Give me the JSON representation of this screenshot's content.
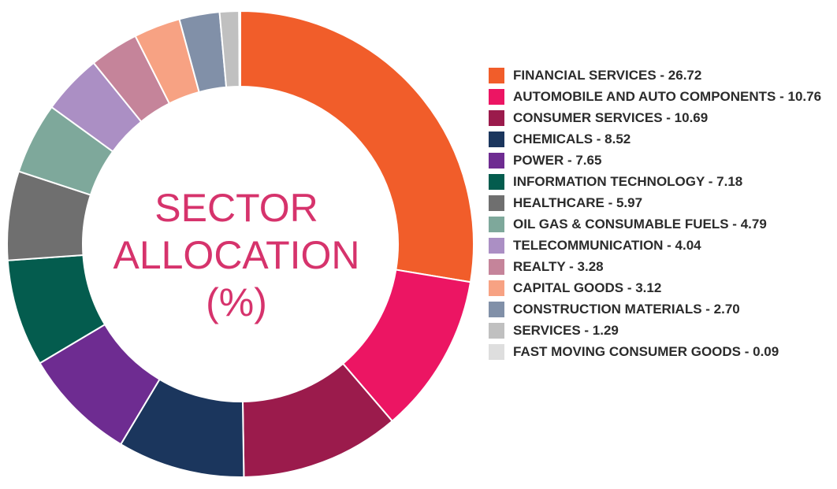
{
  "chart_data": {
    "type": "pie",
    "variant": "donut",
    "title_lines": [
      "SECTOR",
      "ALLOCATION",
      "(%)"
    ],
    "legend_position": "right",
    "slices": [
      {
        "label": "FINANCIAL SERVICES",
        "value": 26.72,
        "display": "26.72",
        "color": "#f15d2a"
      },
      {
        "label": "AUTOMOBILE AND AUTO COMPONENTS",
        "value": 10.76,
        "display": "10.76",
        "color": "#ec1563"
      },
      {
        "label": "CONSUMER SERVICES",
        "value": 10.69,
        "display": "10.69",
        "color": "#9b1b4c"
      },
      {
        "label": "CHEMICALS",
        "value": 8.52,
        "display": "8.52",
        "color": "#1b365d"
      },
      {
        "label": "POWER",
        "value": 7.65,
        "display": "7.65",
        "color": "#6e2c91"
      },
      {
        "label": "INFORMATION TECHNOLOGY",
        "value": 7.18,
        "display": "7.18",
        "color": "#045c4e"
      },
      {
        "label": "HEALTHCARE",
        "value": 5.97,
        "display": "5.97",
        "color": "#6f6f6f"
      },
      {
        "label": "OIL GAS & CONSUMABLE FUELS",
        "value": 4.79,
        "display": "4.79",
        "color": "#7ea89b"
      },
      {
        "label": "TELECOMMUNICATION",
        "value": 4.04,
        "display": "4.04",
        "color": "#ab8fc4"
      },
      {
        "label": "REALTY",
        "value": 3.28,
        "display": "3.28",
        "color": "#c5849a"
      },
      {
        "label": "CAPITAL GOODS",
        "value": 3.12,
        "display": "3.12",
        "color": "#f7a283"
      },
      {
        "label": "CONSTRUCTION MATERIALS",
        "value": 2.7,
        "display": "2.70",
        "color": "#8190a8"
      },
      {
        "label": "SERVICES",
        "value": 1.29,
        "display": "1.29",
        "color": "#c0c0c0"
      },
      {
        "label": "FAST MOVING CONSUMER GOODS",
        "value": 0.09,
        "display": "0.09",
        "color": "#dedede"
      }
    ]
  }
}
